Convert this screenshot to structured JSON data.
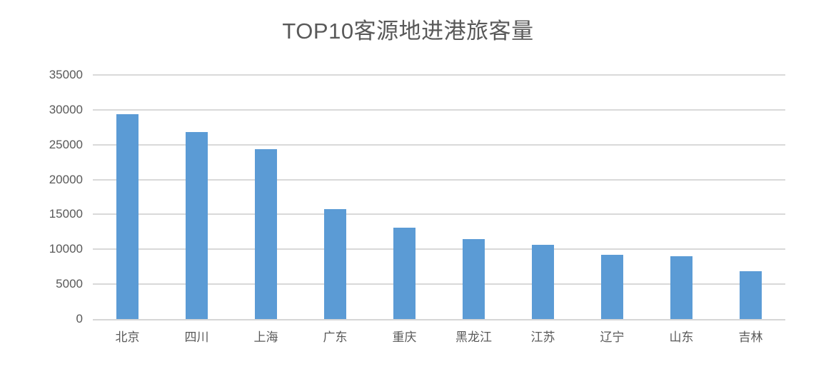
{
  "chart_data": {
    "type": "bar",
    "title": "TOP10客源地进港旅客量",
    "categories": [
      "北京",
      "四川",
      "上海",
      "广东",
      "重庆",
      "黑龙江",
      "江苏",
      "辽宁",
      "山东",
      "吉林"
    ],
    "values": [
      29400,
      26800,
      24400,
      15800,
      13100,
      11500,
      10600,
      9200,
      9000,
      6900
    ],
    "xlabel": "",
    "ylabel": "",
    "ylim": [
      0,
      35000
    ],
    "y_ticks": [
      0,
      5000,
      10000,
      15000,
      20000,
      25000,
      30000,
      35000
    ],
    "grid": true,
    "legend": "none",
    "colors": {
      "bar": "#5B9BD5",
      "gridline": "#D9D9D9",
      "axis_line": "#D6D6D6",
      "title_text": "#595959",
      "tick_text": "#595959",
      "background": "#FFFFFF"
    }
  }
}
